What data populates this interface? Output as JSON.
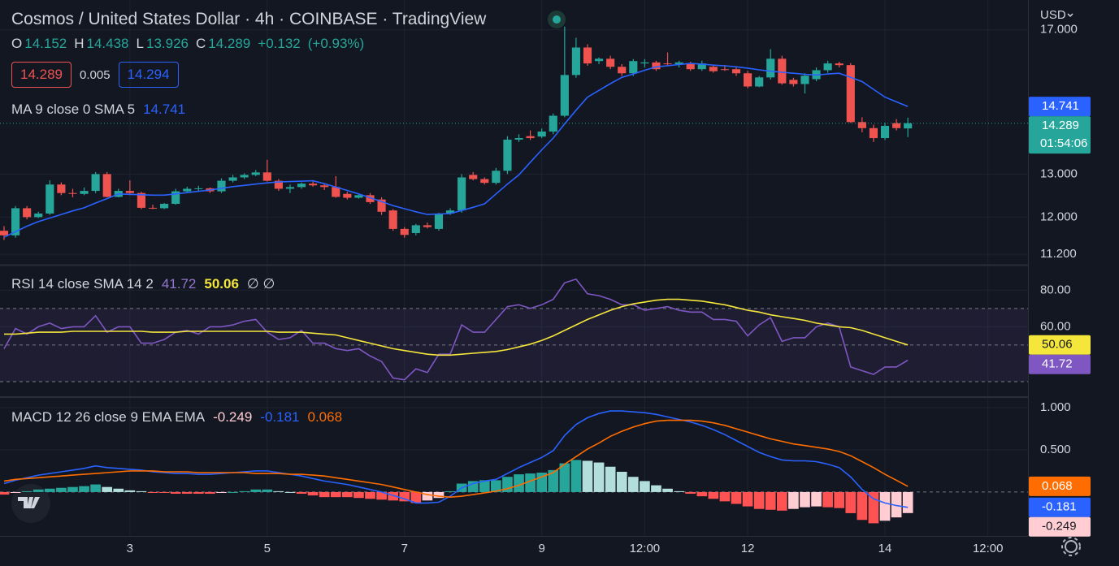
{
  "currency": "USD",
  "header": {
    "o": "O",
    "h": "H",
    "l": "L",
    "c": "C",
    "change": "+0.132",
    "change_pct": "(+0.93%)"
  },
  "trade": {
    "sell": "14.289",
    "spread": "0.005",
    "buy": "14.294"
  },
  "countdown": "01:54:06",
  "chart_data": [
    {
      "type": "candlestick",
      "title": "Cosmos / United States Dollar · 4h · COINBASE · TradingView",
      "up_color": "#26a69a",
      "down_color": "#ef5350",
      "log": true,
      "xlim": [
        2.58,
        362
      ],
      "xticks": [
        {
          "value": 48,
          "label": "3"
        },
        {
          "value": 96,
          "label": "5"
        },
        {
          "value": 144,
          "label": "7"
        },
        {
          "value": 192,
          "label": "9"
        },
        {
          "value": 228,
          "label": "12:00"
        },
        {
          "value": 264,
          "label": "12"
        },
        {
          "value": 312,
          "label": "14"
        },
        {
          "value": 348,
          "label": "12:00"
        }
      ],
      "ylim": [
        11,
        17.7
      ],
      "yticks": [
        {
          "value": 11.2,
          "label": "11.200"
        },
        {
          "value": 12,
          "label": "12.000"
        },
        {
          "value": 13,
          "label": "13.000"
        },
        {
          "value": 17,
          "label": "17.000"
        }
      ],
      "x": [
        4,
        8,
        12,
        16,
        20,
        24,
        28,
        32,
        36,
        40,
        44,
        48,
        52,
        56,
        60,
        64,
        68,
        72,
        76,
        80,
        84,
        88,
        92,
        96,
        100,
        104,
        108,
        112,
        116,
        120,
        124,
        128,
        132,
        136,
        140,
        144,
        148,
        152,
        156,
        160,
        164,
        168,
        172,
        176,
        180,
        184,
        188,
        192,
        196,
        200,
        204,
        208,
        212,
        216,
        220,
        224,
        228,
        232,
        236,
        240,
        244,
        248,
        252,
        256,
        260,
        264,
        268,
        272,
        276,
        280,
        284,
        288,
        292,
        296,
        300,
        304,
        308,
        312,
        316,
        320
      ],
      "ohlc": [
        [
          11.7,
          11.8,
          11.5,
          11.6
        ],
        [
          11.6,
          12.25,
          11.55,
          12.2
        ],
        [
          12.2,
          12.25,
          11.95,
          12.0
        ],
        [
          12.0,
          12.12,
          11.98,
          12.08
        ],
        [
          12.08,
          12.85,
          12.05,
          12.75
        ],
        [
          12.75,
          12.8,
          12.5,
          12.55
        ],
        [
          12.55,
          12.65,
          12.45,
          12.53
        ],
        [
          12.53,
          12.68,
          12.5,
          12.6
        ],
        [
          12.6,
          13.05,
          12.55,
          13.0
        ],
        [
          13.0,
          13.05,
          12.45,
          12.46
        ],
        [
          12.46,
          12.65,
          12.45,
          12.6
        ],
        [
          12.6,
          12.85,
          12.5,
          12.55
        ],
        [
          12.55,
          12.58,
          12.18,
          12.21
        ],
        [
          12.21,
          12.28,
          12.18,
          12.2
        ],
        [
          12.2,
          12.32,
          12.18,
          12.3
        ],
        [
          12.3,
          12.65,
          12.28,
          12.59
        ],
        [
          12.59,
          12.7,
          12.55,
          12.65
        ],
        [
          12.65,
          12.72,
          12.58,
          12.66
        ],
        [
          12.66,
          12.68,
          12.55,
          12.59
        ],
        [
          12.59,
          12.9,
          12.55,
          12.84
        ],
        [
          12.84,
          12.98,
          12.8,
          12.92
        ],
        [
          12.92,
          13.02,
          12.88,
          12.98
        ],
        [
          12.98,
          13.1,
          12.95,
          13.04
        ],
        [
          13.04,
          13.35,
          12.82,
          12.84
        ],
        [
          12.84,
          12.88,
          12.6,
          12.65
        ],
        [
          12.65,
          12.75,
          12.55,
          12.69
        ],
        [
          12.69,
          12.8,
          12.65,
          12.77
        ],
        [
          12.77,
          12.82,
          12.7,
          12.73
        ],
        [
          12.73,
          12.76,
          12.62,
          12.69
        ],
        [
          12.69,
          12.95,
          12.44,
          12.46
        ],
        [
          12.53,
          12.58,
          12.4,
          12.44
        ],
        [
          12.44,
          12.52,
          12.42,
          12.5
        ],
        [
          12.5,
          12.55,
          12.3,
          12.34
        ],
        [
          12.4,
          12.45,
          12.05,
          12.12
        ],
        [
          12.15,
          12.18,
          11.7,
          11.74
        ],
        [
          11.74,
          11.78,
          11.55,
          11.61
        ],
        [
          11.65,
          11.85,
          11.6,
          11.82
        ],
        [
          11.82,
          11.88,
          11.75,
          11.78
        ],
        [
          11.74,
          12.1,
          11.7,
          12.08
        ],
        [
          12.08,
          12.2,
          12.05,
          12.15
        ],
        [
          12.15,
          13.0,
          12.1,
          12.92
        ],
        [
          12.98,
          13.05,
          12.85,
          12.88
        ],
        [
          12.88,
          12.92,
          12.75,
          12.79
        ],
        [
          12.79,
          13.15,
          12.75,
          13.08
        ],
        [
          13.08,
          13.95,
          13.0,
          13.86
        ],
        [
          13.86,
          14.0,
          13.8,
          13.9
        ],
        [
          13.95,
          14.1,
          13.85,
          13.9
        ],
        [
          13.94,
          14.15,
          13.9,
          14.07
        ],
        [
          14.07,
          14.55,
          14.0,
          14.49
        ],
        [
          14.49,
          17.1,
          14.45,
          15.63
        ],
        [
          15.63,
          16.75,
          15.55,
          16.45
        ],
        [
          16.45,
          16.55,
          15.9,
          15.97
        ],
        [
          16.04,
          16.15,
          15.95,
          16.11
        ],
        [
          16.11,
          16.2,
          15.8,
          15.87
        ],
        [
          15.87,
          15.95,
          15.6,
          15.68
        ],
        [
          15.68,
          16.1,
          15.6,
          16.04
        ],
        [
          15.97,
          16.1,
          15.85,
          16.0
        ],
        [
          16.0,
          16.05,
          15.75,
          15.8
        ],
        [
          15.97,
          16.3,
          15.9,
          15.95
        ],
        [
          15.95,
          16.05,
          15.85,
          16.0
        ],
        [
          15.97,
          16.02,
          15.75,
          15.8
        ],
        [
          15.8,
          16.05,
          15.75,
          15.97
        ],
        [
          15.87,
          15.92,
          15.7,
          15.74
        ],
        [
          15.8,
          15.92,
          15.75,
          15.78
        ],
        [
          15.8,
          15.85,
          15.6,
          15.68
        ],
        [
          15.68,
          15.75,
          15.25,
          15.3
        ],
        [
          15.3,
          15.6,
          15.28,
          15.56
        ],
        [
          15.56,
          16.4,
          15.5,
          16.11
        ],
        [
          16.11,
          16.2,
          15.35,
          15.39
        ],
        [
          15.49,
          15.55,
          15.3,
          15.37
        ],
        [
          15.37,
          15.68,
          15.1,
          15.61
        ],
        [
          15.51,
          15.85,
          15.45,
          15.77
        ],
        [
          15.77,
          16.05,
          15.7,
          15.97
        ],
        [
          15.97,
          16.02,
          15.85,
          15.92
        ],
        [
          15.92,
          15.98,
          14.3,
          14.32
        ],
        [
          14.32,
          14.45,
          14.05,
          14.16
        ],
        [
          14.16,
          14.25,
          13.8,
          13.9
        ],
        [
          13.9,
          14.3,
          13.85,
          14.22
        ],
        [
          14.29,
          14.4,
          14.1,
          14.16
        ],
        [
          14.152,
          14.438,
          13.926,
          14.289
        ]
      ],
      "series": [
        {
          "name": "MA 9 close 0 SMA 5",
          "type": "line",
          "color": "#2962ff",
          "values": [
            11.56,
            11.68,
            11.8,
            11.9,
            11.98,
            12.06,
            12.14,
            12.21,
            12.32,
            12.42,
            12.53,
            12.52,
            12.51,
            12.5,
            12.5,
            12.53,
            12.56,
            12.59,
            12.62,
            12.66,
            12.7,
            12.73,
            12.76,
            12.79,
            12.81,
            12.82,
            12.83,
            12.84,
            12.77,
            12.69,
            12.61,
            12.53,
            12.44,
            12.35,
            12.26,
            12.19,
            12.12,
            12.06,
            12.07,
            12.08,
            12.15,
            12.22,
            12.3,
            12.53,
            12.76,
            12.98,
            13.29,
            13.6,
            13.9,
            14.27,
            14.64,
            15.0,
            15.19,
            15.38,
            15.56,
            15.66,
            15.77,
            15.87,
            15.9,
            15.94,
            15.97,
            15.95,
            15.92,
            15.9,
            15.87,
            15.83,
            15.78,
            15.74,
            15.71,
            15.68,
            15.65,
            15.63,
            15.66,
            15.68,
            15.56,
            15.44,
            15.22,
            15.0,
            14.87,
            14.741
          ]
        }
      ]
    },
    {
      "type": "line",
      "title": "RSI 14 close SMA 14 2",
      "extra": "∅ ∅",
      "ylim": [
        22,
        93
      ],
      "yticks": [
        {
          "value": 60,
          "label": "60.00"
        },
        {
          "value": 80,
          "label": "80.00"
        }
      ],
      "bands": [
        70,
        50,
        30
      ],
      "band_color": "#7e57c2",
      "series": [
        {
          "type": "line",
          "color": "#7e57c2",
          "values": [
            48,
            59,
            56,
            60,
            62,
            59,
            60,
            60,
            66,
            57,
            60,
            60,
            51,
            51,
            53,
            57,
            58,
            56,
            60,
            60,
            61,
            63,
            64,
            57,
            53,
            54,
            58,
            51,
            51,
            48,
            47,
            48,
            44,
            41,
            32,
            31,
            37,
            35,
            45,
            45,
            61,
            57,
            57,
            64,
            71,
            72,
            70,
            72,
            75,
            84,
            86,
            78,
            77,
            75,
            72,
            72,
            69,
            70,
            71,
            69,
            68,
            68,
            64,
            64,
            63,
            55,
            61,
            65,
            52,
            54,
            54,
            60,
            62,
            60,
            38,
            36,
            34,
            38,
            38,
            41.72
          ]
        },
        {
          "type": "line",
          "color": "#f5e63c",
          "values": [
            56,
            56,
            56.5,
            57,
            57,
            57,
            57.5,
            57.5,
            57.5,
            57.5,
            57.5,
            57.5,
            57.5,
            57,
            57,
            57,
            57.5,
            57.5,
            57.5,
            57.5,
            57.5,
            57.5,
            57.5,
            57.5,
            57,
            57,
            57,
            56.5,
            56,
            55.5,
            54,
            52.5,
            51,
            49.5,
            48,
            47,
            46,
            45,
            44.5,
            44.5,
            45,
            45.5,
            46,
            46.5,
            47.5,
            49,
            50.5,
            52.5,
            55,
            58,
            61,
            64,
            66.5,
            69,
            71,
            72.5,
            73.5,
            74.5,
            75,
            75,
            74.5,
            74,
            73,
            72,
            70.5,
            69,
            68,
            66.5,
            65.5,
            64.5,
            63.5,
            62,
            61,
            60,
            59.5,
            58,
            56,
            54,
            52,
            50.06
          ]
        }
      ]
    },
    {
      "type": "macd",
      "title": "MACD 12 26 close 9 EMA EMA",
      "ylim": [
        -0.52,
        1.115
      ],
      "yticks": [
        {
          "value": 0.5,
          "label": "0.500"
        },
        {
          "value": 1,
          "label": "1.000"
        }
      ],
      "hist_colors": [
        "#26a69a",
        "#b2dfdb",
        "#ffcdd2",
        "#ff5252"
      ],
      "series": [
        {
          "type": "bar",
          "values": [
            -0.03,
            -0.01,
            0.01,
            0.03,
            0.04,
            0.05,
            0.06,
            0.07,
            0.09,
            0.06,
            0.04,
            0.02,
            0.01,
            -0.01,
            -0.01,
            -0.02,
            -0.02,
            -0.02,
            -0.02,
            -0.01,
            0.0,
            0.01,
            0.03,
            0.03,
            0.01,
            0.0,
            -0.02,
            -0.04,
            -0.06,
            -0.06,
            -0.06,
            -0.07,
            -0.08,
            -0.09,
            -0.1,
            -0.11,
            -0.13,
            -0.1,
            -0.07,
            0.01,
            0.1,
            0.13,
            0.14,
            0.14,
            0.18,
            0.21,
            0.22,
            0.23,
            0.26,
            0.34,
            0.38,
            0.37,
            0.35,
            0.3,
            0.24,
            0.18,
            0.13,
            0.08,
            0.04,
            0.01,
            -0.02,
            -0.05,
            -0.08,
            -0.11,
            -0.14,
            -0.17,
            -0.2,
            -0.21,
            -0.22,
            -0.2,
            -0.18,
            -0.17,
            -0.18,
            -0.19,
            -0.25,
            -0.33,
            -0.37,
            -0.34,
            -0.3,
            -0.249
          ]
        },
        {
          "type": "line",
          "color": "#2962ff",
          "values": [
            0.1,
            0.14,
            0.17,
            0.2,
            0.22,
            0.24,
            0.26,
            0.28,
            0.31,
            0.29,
            0.28,
            0.27,
            0.26,
            0.24,
            0.23,
            0.22,
            0.22,
            0.21,
            0.21,
            0.22,
            0.23,
            0.24,
            0.25,
            0.25,
            0.23,
            0.21,
            0.19,
            0.16,
            0.13,
            0.11,
            0.09,
            0.06,
            0.03,
            0.0,
            -0.04,
            -0.08,
            -0.13,
            -0.13,
            -0.12,
            -0.05,
            0.05,
            0.1,
            0.13,
            0.15,
            0.22,
            0.29,
            0.35,
            0.41,
            0.49,
            0.67,
            0.8,
            0.88,
            0.93,
            0.96,
            0.96,
            0.95,
            0.94,
            0.92,
            0.89,
            0.86,
            0.83,
            0.79,
            0.74,
            0.68,
            0.61,
            0.54,
            0.47,
            0.42,
            0.38,
            0.37,
            0.37,
            0.36,
            0.33,
            0.29,
            0.18,
            0.03,
            -0.08,
            -0.13,
            -0.16,
            -0.181
          ]
        },
        {
          "type": "line",
          "color": "#ff6d00",
          "values": [
            0.13,
            0.15,
            0.16,
            0.17,
            0.18,
            0.19,
            0.2,
            0.21,
            0.22,
            0.23,
            0.24,
            0.25,
            0.25,
            0.25,
            0.24,
            0.24,
            0.24,
            0.23,
            0.23,
            0.23,
            0.23,
            0.23,
            0.22,
            0.22,
            0.22,
            0.21,
            0.21,
            0.2,
            0.19,
            0.17,
            0.15,
            0.13,
            0.11,
            0.09,
            0.06,
            0.03,
            0.0,
            -0.03,
            -0.05,
            -0.06,
            -0.05,
            -0.03,
            -0.01,
            0.01,
            0.04,
            0.08,
            0.13,
            0.18,
            0.23,
            0.33,
            0.42,
            0.51,
            0.58,
            0.66,
            0.72,
            0.77,
            0.81,
            0.84,
            0.85,
            0.85,
            0.85,
            0.84,
            0.82,
            0.79,
            0.75,
            0.71,
            0.67,
            0.63,
            0.6,
            0.57,
            0.55,
            0.53,
            0.51,
            0.48,
            0.43,
            0.36,
            0.29,
            0.21,
            0.14,
            0.068
          ]
        }
      ]
    }
  ]
}
